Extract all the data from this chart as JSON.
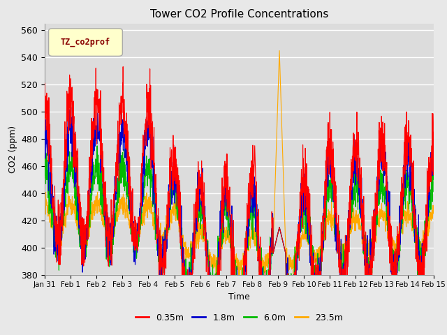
{
  "title": "Tower CO2 Profile Concentrations",
  "xlabel": "Time",
  "ylabel": "CO2 (ppm)",
  "ylim": [
    380,
    565
  ],
  "yticks": [
    380,
    400,
    420,
    440,
    460,
    480,
    500,
    520,
    540,
    560
  ],
  "bg_color": "#e8e8e8",
  "plot_bg_color": "#dcdcdc",
  "legend_label": "TZ_co2prof",
  "legend_bg": "#ffffcc",
  "legend_border": "#aaaaaa",
  "legend_text_color": "#880000",
  "series_labels": [
    "0.35m",
    "1.8m",
    "6.0m",
    "23.5m"
  ],
  "series_colors": [
    "#ff0000",
    "#0000cc",
    "#00bb00",
    "#ffaa00"
  ],
  "line_width": 0.8,
  "xtick_labels": [
    "Jan 31",
    "Feb 1",
    "Feb 2",
    "Feb 3",
    "Feb 4",
    "Feb 5",
    "Feb 6",
    "Feb 7",
    "Feb 8",
    "Feb 9",
    "Feb 10",
    "Feb 11",
    "Feb 12",
    "Feb 13",
    "Feb 14",
    "Feb 15"
  ],
  "num_days": 15,
  "points_per_day": 144
}
